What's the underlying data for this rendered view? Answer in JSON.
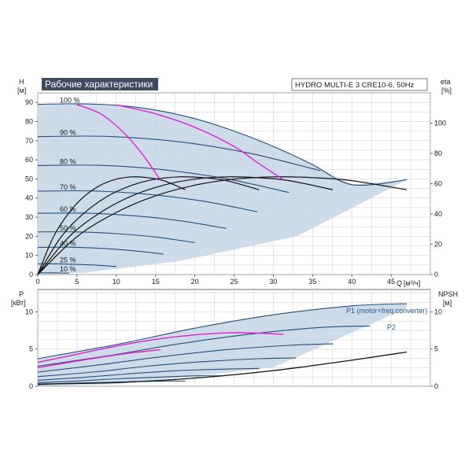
{
  "chart_data": [
    {
      "type": "line",
      "title": "Рабочие характеристики",
      "subtitle": "HYDRO MULTI-E 3 CRE10-6, 50Hz",
      "ylabel_left": "H",
      "ylabel_left_unit": "[м]",
      "ylabel_right": "eta",
      "ylabel_right_unit": "[%]",
      "xlabel": "Q",
      "xlabel_unit": "[м³/ч]",
      "xlim": [
        0,
        50
      ],
      "ylim": [
        0,
        95
      ],
      "yright_lim": [
        0,
        120
      ],
      "x_ticks": [
        "0",
        "5",
        "10",
        "15",
        "20",
        "25",
        "30",
        "35",
        "40",
        "45"
      ],
      "y_ticks": [
        "0",
        "10",
        "20",
        "30",
        "40",
        "50",
        "60",
        "70",
        "80",
        "90"
      ],
      "yright_ticks": [
        "0",
        "20",
        "40",
        "60",
        "80",
        "100"
      ],
      "grid": true,
      "speed_labels": [
        "100 %",
        "90 %",
        "80 %",
        "70 %",
        "60 %",
        "50 %",
        "40 %",
        "25 %",
        "10 %"
      ],
      "speed_curves": [
        {
          "speed": 1.0,
          "x": [
            0,
            5,
            10,
            15,
            20,
            25,
            30,
            35,
            40,
            47
          ],
          "y": [
            89,
            89.3,
            88.5,
            86,
            81.5,
            75,
            67,
            57.5,
            47,
            49.5
          ]
        },
        {
          "speed": 0.9,
          "x": [
            0,
            9,
            18,
            27,
            36,
            42.3
          ],
          "y": [
            72.1,
            72.2,
            69.4,
            63.4,
            54.3,
            35
          ]
        },
        {
          "speed": 0.8,
          "x": [
            0,
            8,
            16,
            24,
            32,
            37.6
          ],
          "y": [
            57,
            57.1,
            54.8,
            50.1,
            42.9,
            35
          ]
        },
        {
          "speed": 0.7,
          "x": [
            0,
            7,
            14,
            21,
            28,
            32.9
          ],
          "y": [
            43.6,
            43.7,
            42,
            38.4,
            32.8,
            35
          ]
        },
        {
          "speed": 0.6,
          "x": [
            0,
            6,
            12,
            18,
            24,
            28.2
          ],
          "y": [
            32,
            32.1,
            30.8,
            28.2,
            24.1,
            35
          ]
        },
        {
          "speed": 0.5,
          "x": [
            0,
            5,
            10,
            15,
            20,
            23.5
          ],
          "y": [
            22.3,
            22.3,
            21.4,
            19.6,
            16.7,
            35
          ]
        },
        {
          "speed": 0.4,
          "x": [
            0,
            4,
            8,
            12,
            16,
            18.8
          ],
          "y": [
            14.2,
            14.3,
            13.7,
            12.5,
            10.7,
            35
          ]
        },
        {
          "speed": 0.25,
          "x": [
            0,
            2.5,
            5,
            7.5,
            10,
            11.8
          ],
          "y": [
            5.6,
            5.6,
            5.3,
            4.9,
            4.2,
            35
          ]
        },
        {
          "speed": 0.1,
          "x": [
            0,
            1,
            2,
            3,
            4,
            4.7
          ],
          "y": [
            0.9,
            0.9,
            0.9,
            0.8,
            0.7,
            35
          ]
        }
      ],
      "highlight_curves": [
        {
          "x": [
            5,
            8,
            11,
            13.5,
            15.6
          ],
          "y": [
            88.8,
            84,
            74,
            62,
            49.5
          ]
        },
        {
          "x": [
            10,
            15,
            20,
            25,
            28,
            31.3
          ],
          "y": [
            88.7,
            84,
            77,
            67,
            58.5,
            49.5
          ]
        }
      ],
      "eta_curves": [
        {
          "speed": 1.0,
          "x": [
            0,
            5,
            10,
            15,
            20,
            25,
            30,
            35,
            40,
            47
          ],
          "y": [
            0,
            25,
            41,
            52,
            59,
            63,
            64.5,
            64,
            62,
            56
          ]
        },
        {
          "speed": 0.8,
          "x": [
            0,
            4,
            8,
            12,
            16,
            20,
            24,
            28,
            32,
            37.6
          ],
          "y": [
            0,
            25,
            41,
            52,
            59,
            63,
            64.5,
            64,
            62,
            56
          ]
        },
        {
          "speed": 0.6,
          "x": [
            0,
            3,
            6,
            9,
            12,
            15,
            18,
            21,
            24,
            28.2
          ],
          "y": [
            0,
            25,
            41,
            52,
            59,
            63,
            64.5,
            64,
            62,
            56
          ]
        },
        {
          "speed": 0.4,
          "x": [
            0,
            2,
            4,
            6,
            8,
            10,
            12,
            14,
            16,
            18.8
          ],
          "y": [
            0,
            25,
            41,
            52,
            59,
            63,
            64.5,
            64,
            62,
            56
          ]
        }
      ]
    },
    {
      "type": "line",
      "ylabel_left": "P",
      "ylabel_left_unit": "[кВт]",
      "ylabel_right": "NPSH",
      "ylabel_right_unit": "[м]",
      "xlim": [
        0,
        50
      ],
      "ylim": [
        0,
        13
      ],
      "yright_lim": [
        0,
        13
      ],
      "y_ticks": [
        "0",
        "5",
        "10"
      ],
      "yright_ticks": [
        "0",
        "5",
        "10"
      ],
      "grid": true,
      "series_labels": [
        "P1 (motor+freq.converter)",
        "P2"
      ],
      "power_curves": [
        {
          "speed": 1.0,
          "x": [
            0,
            10,
            20,
            30,
            40,
            47
          ],
          "y": [
            3.7,
            5.6,
            7.8,
            9.6,
            10.8,
            11.1
          ]
        },
        {
          "speed": 0.9,
          "x": [
            0,
            9,
            18,
            27,
            36,
            42.3
          ],
          "y": [
            2.7,
            4.1,
            5.7,
            7.0,
            7.9,
            8.1
          ]
        },
        {
          "speed": 0.8,
          "x": [
            0,
            8,
            16,
            24,
            32,
            37.6
          ],
          "y": [
            1.9,
            2.9,
            4.0,
            4.9,
            5.5,
            5.7
          ]
        },
        {
          "speed": 0.7,
          "x": [
            0,
            7,
            14,
            21,
            28,
            32.9
          ],
          "y": [
            1.3,
            1.9,
            2.7,
            3.3,
            3.7,
            3.8
          ]
        },
        {
          "speed": 0.6,
          "x": [
            0,
            6,
            12,
            18,
            24,
            28.2
          ],
          "y": [
            0.8,
            1.2,
            1.7,
            2.1,
            2.3,
            2.4
          ]
        },
        {
          "speed": 0.5,
          "x": [
            0,
            5,
            10,
            15,
            20,
            23.5
          ],
          "y": [
            0.5,
            0.7,
            1.0,
            1.2,
            1.4,
            1.4
          ]
        },
        {
          "speed": 0.4,
          "x": [
            0,
            4,
            8,
            12,
            16,
            18.8
          ],
          "y": [
            0.2,
            0.4,
            0.5,
            0.6,
            0.7,
            0.7
          ]
        }
      ],
      "highlight_curves": [
        {
          "x": [
            0,
            5,
            10,
            15,
            20,
            25,
            31.3
          ],
          "y": [
            3.2,
            4.3,
            5.4,
            6.3,
            6.9,
            7.2,
            7.0
          ]
        },
        {
          "x": [
            0,
            4,
            8,
            12,
            15.6
          ],
          "y": [
            2.5,
            3.2,
            3.9,
            4.5,
            4.9
          ]
        }
      ],
      "npsh_curve": {
        "x": [
          0,
          10,
          20,
          30,
          40,
          47
        ],
        "y": [
          0.3,
          0.5,
          1.1,
          2.1,
          3.5,
          4.6
        ]
      }
    }
  ]
}
